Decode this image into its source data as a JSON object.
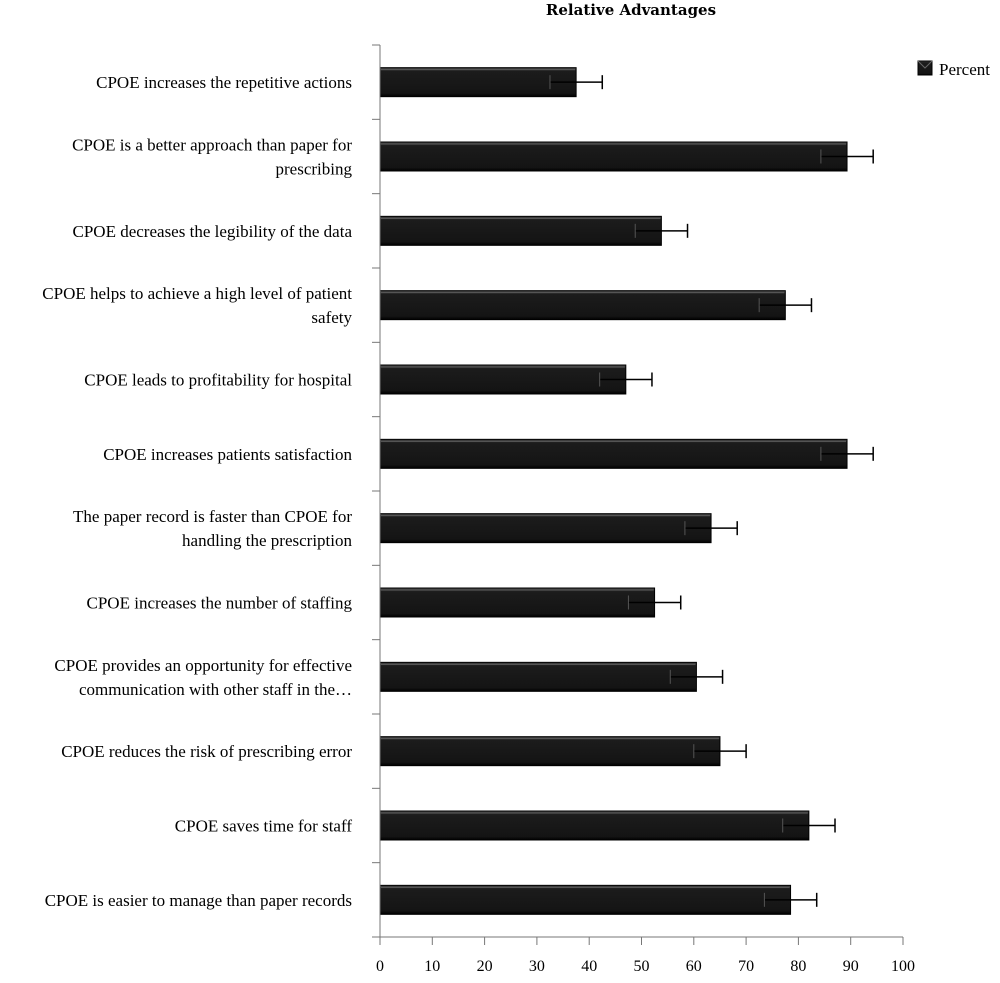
{
  "chart_data": {
    "type": "bar",
    "orientation": "horizontal",
    "title": "Relative Advantages",
    "categories": [
      [
        "CPOE increases the repetitive actions"
      ],
      [
        "CPOE is a better approach than paper for",
        "prescribing"
      ],
      [
        "CPOE decreases the legibility of the data"
      ],
      [
        "CPOE helps to achieve a high level of patient",
        "safety"
      ],
      [
        "CPOE leads to profitability for hospital"
      ],
      [
        "CPOE increases patients satisfaction"
      ],
      [
        "The paper record is faster than CPOE for",
        "handling the prescription"
      ],
      [
        "CPOE increases the number of staffing"
      ],
      [
        "CPOE provides an opportunity for effective",
        "communication with other staff in the…"
      ],
      [
        "CPOE reduces the risk of prescribing error"
      ],
      [
        "CPOE saves time for staff"
      ],
      [
        "CPOE is easier to manage than paper records"
      ]
    ],
    "series": [
      {
        "name": "Percent",
        "values": [
          37.5,
          89.3,
          53.8,
          77.5,
          47.0,
          89.3,
          63.3,
          52.5,
          60.5,
          65.0,
          82.0,
          78.5
        ],
        "error": 5,
        "color": "#1a1a1a"
      }
    ],
    "xticks": [
      "0",
      "10",
      "20",
      "30",
      "40",
      "50",
      "60",
      "70",
      "80",
      "90",
      "100"
    ],
    "xlim": [
      0,
      100
    ],
    "legend_position": "top-right",
    "grid": false
  }
}
